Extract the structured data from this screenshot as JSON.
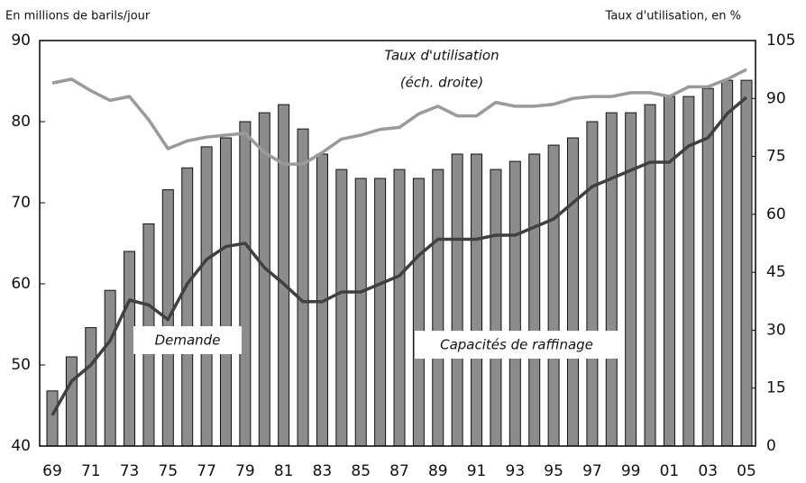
{
  "chart_data": {
    "type": "bar",
    "y_label": "En millions de barils/jour",
    "y2_label": "Taux d'utilisation, en %",
    "annotations": [
      "(éch. droite)"
    ],
    "categories": [
      "69",
      null,
      "71",
      null,
      "73",
      null,
      "75",
      null,
      "77",
      null,
      "79",
      null,
      "81",
      null,
      "83",
      null,
      "85",
      null,
      "87",
      null,
      "89",
      null,
      "91",
      null,
      "93",
      null,
      "95",
      null,
      "97",
      null,
      "99",
      null,
      "01",
      null,
      "03",
      null,
      "05"
    ],
    "series": [
      {
        "name": "Capacités de raffinage",
        "type": "bar",
        "color": "#8c8c8c",
        "values": [
          46.8,
          51,
          54.6,
          59.2,
          64,
          67.4,
          71.6,
          74.3,
          76.9,
          78,
          80,
          81.1,
          82.1,
          79.1,
          76,
          74.1,
          73,
          73,
          74.1,
          73,
          74.1,
          76,
          76,
          74.1,
          75.1,
          76,
          77.1,
          78,
          80,
          81.1,
          81.1,
          82.1,
          83.1,
          83.1,
          84.1,
          85.1,
          85.1
        ]
      },
      {
        "name": "Demande",
        "type": "line",
        "color": "#404040",
        "values": [
          43.8,
          48,
          50,
          53,
          58,
          57.4,
          55.6,
          60,
          63,
          64.6,
          65,
          62,
          60,
          57.8,
          57.8,
          59,
          59,
          60,
          61,
          63.5,
          65.5,
          65.5,
          65.5,
          66,
          66,
          67,
          68,
          70,
          72,
          73,
          74,
          75,
          75,
          77,
          78,
          81,
          83
        ]
      },
      {
        "name": "Taux d'utilisation",
        "type": "line",
        "color": "#9a9a9a",
        "axis": "y2",
        "values": [
          94,
          95,
          92,
          89.5,
          90.5,
          84.5,
          77,
          79,
          80,
          80.5,
          81,
          76,
          73,
          73,
          76,
          79.5,
          80.5,
          82,
          82.5,
          86,
          88,
          85.5,
          85.5,
          89,
          88,
          88,
          88.5,
          90,
          90.5,
          90.5,
          91.5,
          91.5,
          90.5,
          93,
          93,
          95,
          97.5
        ]
      }
    ],
    "ylim": [
      40,
      90
    ],
    "yticks": [
      40,
      50,
      60,
      70,
      80,
      90
    ],
    "y2lim": [
      0,
      105
    ],
    "y2ticks": [
      0,
      15,
      30,
      45,
      60,
      75,
      90,
      105
    ]
  }
}
